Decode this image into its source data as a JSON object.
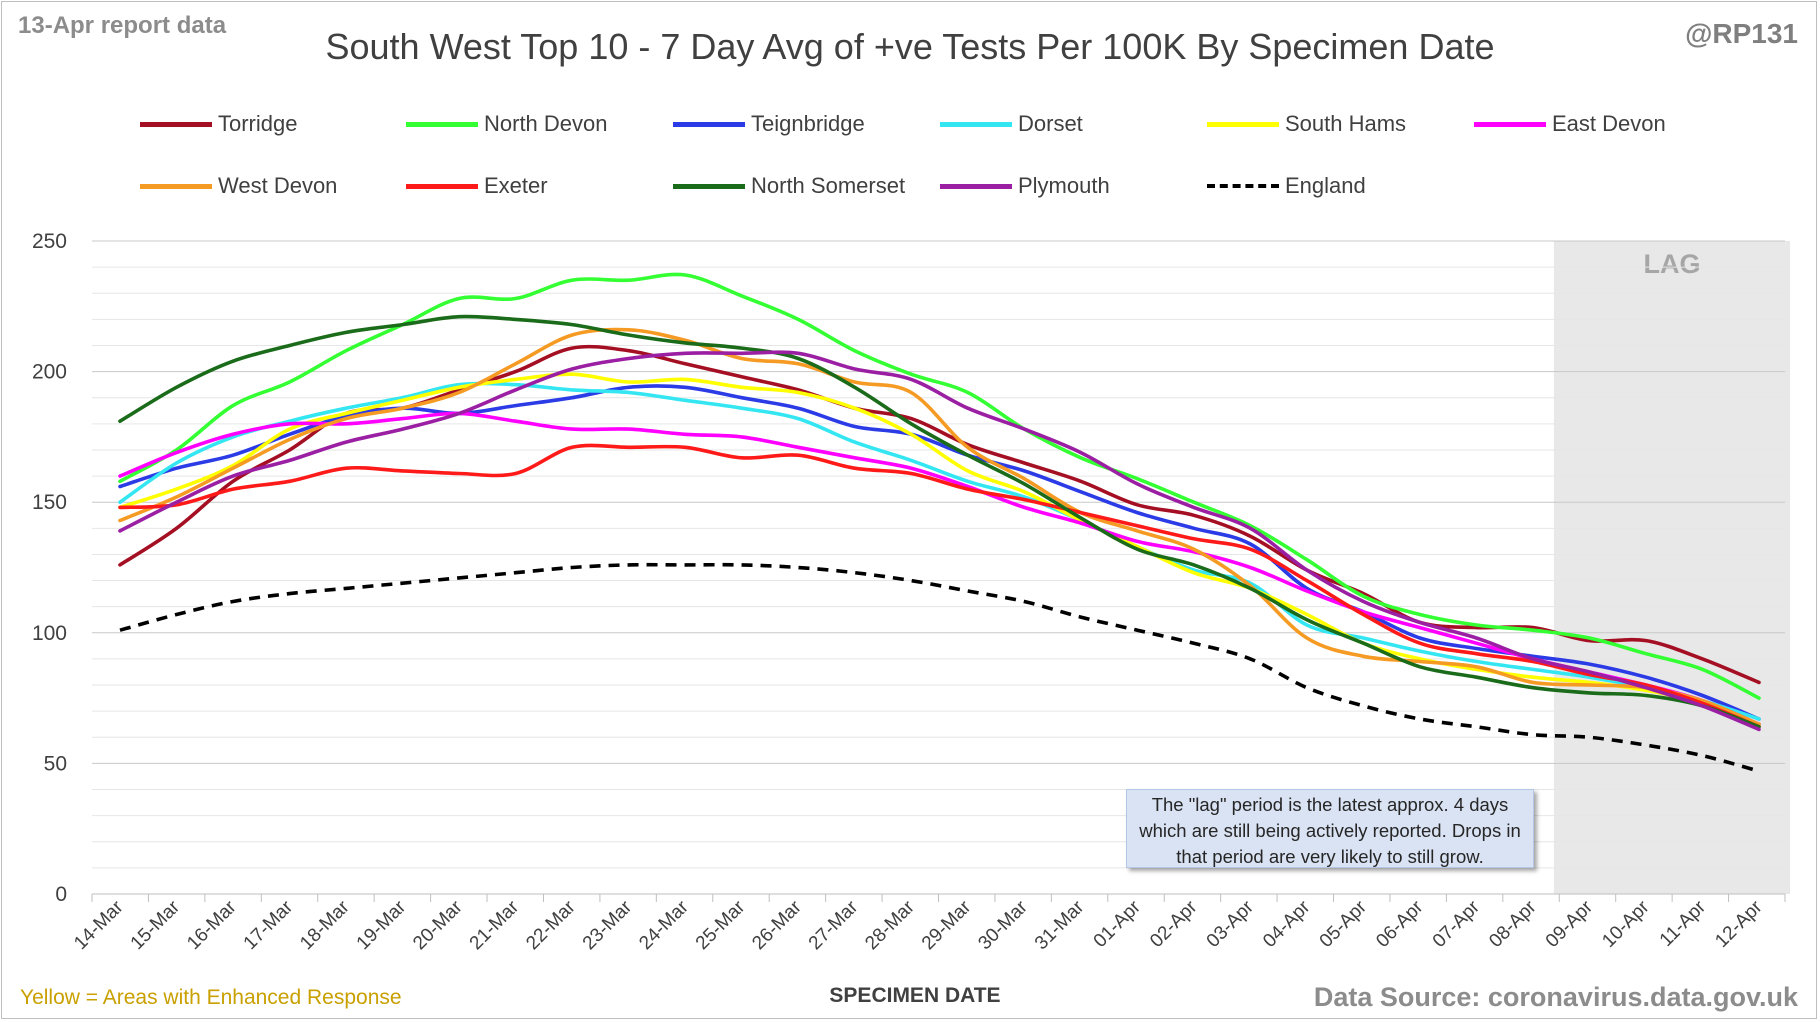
{
  "header": {
    "report_label": "13-Apr report data",
    "handle": "@RP131"
  },
  "footer": {
    "note_left": "Yellow = Areas with Enhanced Response",
    "source": "Data Source: coronavirus.data.gov.uk"
  },
  "annotation": {
    "lag_note": "The \"lag\" period is the latest approx. 4 days which are still being actively reported.  Drops in that period are very likely to still grow."
  },
  "chart_data": {
    "type": "line",
    "title": "South West Top 10 - 7 Day Avg of +ve Tests Per 100K By Specimen Date",
    "xlabel": "SPECIMEN DATE",
    "ylabel": "",
    "ylim": [
      0,
      250
    ],
    "yticks": [
      0,
      50,
      100,
      150,
      200,
      250
    ],
    "grid": true,
    "legend_position": "top",
    "lag_label": "LAG",
    "lag_start": "09-Apr",
    "lag_end": "12-Apr",
    "x": [
      "14-Mar",
      "15-Mar",
      "16-Mar",
      "17-Mar",
      "18-Mar",
      "19-Mar",
      "20-Mar",
      "21-Mar",
      "22-Mar",
      "23-Mar",
      "24-Mar",
      "25-Mar",
      "26-Mar",
      "27-Mar",
      "28-Mar",
      "29-Mar",
      "30-Mar",
      "31-Mar",
      "01-Apr",
      "02-Apr",
      "03-Apr",
      "04-Apr",
      "05-Apr",
      "06-Apr",
      "07-Apr",
      "08-Apr",
      "09-Apr",
      "10-Apr",
      "11-Apr",
      "12-Apr"
    ],
    "series": [
      {
        "name": "Torridge",
        "color": "#a50f23",
        "dashed": false,
        "values": [
          126,
          140,
          158,
          170,
          184,
          186,
          193,
          200,
          209,
          208,
          203,
          198,
          193,
          186,
          182,
          172,
          165,
          158,
          149,
          145,
          137,
          124,
          115,
          104,
          102,
          102,
          97,
          97,
          90,
          81
        ]
      },
      {
        "name": "North Devon",
        "color": "#33ff33",
        "dashed": false,
        "values": [
          158,
          170,
          187,
          196,
          208,
          218,
          228,
          228,
          235,
          235,
          237,
          229,
          220,
          208,
          199,
          192,
          178,
          167,
          159,
          150,
          141,
          128,
          114,
          107,
          103,
          101,
          98,
          92,
          86,
          75
        ]
      },
      {
        "name": "Teignbridge",
        "color": "#2b3be6",
        "dashed": false,
        "values": [
          156,
          163,
          168,
          176,
          183,
          186,
          184,
          187,
          190,
          194,
          194,
          190,
          186,
          179,
          176,
          168,
          162,
          154,
          146,
          140,
          134,
          117,
          108,
          98,
          94,
          91,
          88,
          83,
          76,
          67
        ]
      },
      {
        "name": "Dorset",
        "color": "#33e6f2",
        "dashed": false,
        "values": [
          150,
          165,
          175,
          181,
          186,
          190,
          195,
          195,
          193,
          192,
          189,
          186,
          182,
          173,
          166,
          158,
          152,
          143,
          133,
          124,
          119,
          103,
          98,
          93,
          89,
          86,
          83,
          79,
          74,
          67
        ]
      },
      {
        "name": "South Hams",
        "color": "#ffff00",
        "dashed": false,
        "values": [
          148,
          155,
          164,
          178,
          184,
          189,
          194,
          197,
          199,
          196,
          197,
          194,
          192,
          186,
          176,
          162,
          154,
          143,
          133,
          123,
          117,
          107,
          96,
          90,
          86,
          83,
          81,
          78,
          73,
          65
        ]
      },
      {
        "name": "East Devon",
        "color": "#ff00ff",
        "dashed": false,
        "values": [
          160,
          169,
          176,
          180,
          180,
          182,
          184,
          181,
          178,
          178,
          176,
          175,
          171,
          167,
          163,
          156,
          148,
          142,
          135,
          131,
          125,
          116,
          108,
          102,
          96,
          90,
          85,
          80,
          74,
          65
        ]
      },
      {
        "name": "West Devon",
        "color": "#f59a23",
        "dashed": false,
        "values": [
          143,
          152,
          163,
          174,
          182,
          186,
          192,
          203,
          214,
          216,
          212,
          205,
          203,
          196,
          192,
          171,
          159,
          146,
          139,
          132,
          118,
          98,
          91,
          89,
          87,
          81,
          80,
          79,
          74,
          65
        ]
      },
      {
        "name": "Exeter",
        "color": "#ff1a1a",
        "dashed": false,
        "values": [
          148,
          149,
          155,
          158,
          163,
          162,
          161,
          161,
          171,
          171,
          171,
          167,
          168,
          163,
          161,
          155,
          151,
          146,
          141,
          136,
          132,
          120,
          107,
          96,
          92,
          89,
          84,
          80,
          73,
          64
        ]
      },
      {
        "name": "North Somerset",
        "color": "#1a6b1a",
        "dashed": false,
        "values": [
          181,
          194,
          204,
          210,
          215,
          218,
          221,
          220,
          218,
          214,
          211,
          209,
          205,
          194,
          180,
          168,
          157,
          144,
          132,
          126,
          117,
          105,
          96,
          87,
          83,
          79,
          77,
          76,
          72,
          64
        ]
      },
      {
        "name": "Plymouth",
        "color": "#9b1fa3",
        "dashed": false,
        "values": [
          139,
          150,
          160,
          166,
          173,
          178,
          184,
          193,
          201,
          205,
          207,
          207,
          207,
          201,
          197,
          186,
          178,
          169,
          157,
          148,
          140,
          124,
          112,
          104,
          98,
          90,
          85,
          79,
          72,
          63
        ]
      },
      {
        "name": "England",
        "color": "#000000",
        "dashed": true,
        "values": [
          101,
          107,
          112,
          115,
          117,
          119,
          121,
          123,
          125,
          126,
          126,
          126,
          125,
          123,
          120,
          116,
          112,
          106,
          101,
          96,
          90,
          79,
          72,
          67,
          64,
          61,
          60,
          57,
          53,
          47
        ]
      }
    ]
  }
}
